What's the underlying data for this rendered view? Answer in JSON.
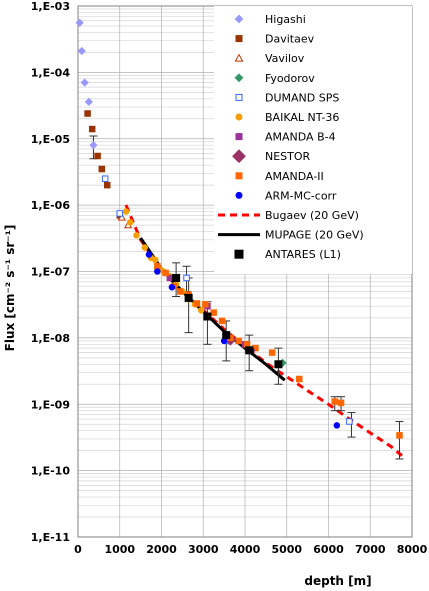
{
  "chart_data": {
    "type": "scatter",
    "xlabel": "depth [m]",
    "ylabel": "Flux [cm⁻² s⁻¹ sr⁻¹]",
    "xlim": [
      0,
      8000
    ],
    "ylim": [
      1e-11,
      0.001
    ],
    "yscale": "log",
    "grid": true,
    "legend_position": "top-right",
    "x_ticks": [
      "0",
      "1000",
      "2000",
      "3000",
      "4000",
      "5000",
      "6000",
      "7000",
      "8000"
    ],
    "y_ticks": [
      "1,E-11",
      "1,E-10",
      "1,E-09",
      "1,E-08",
      "1,E-07",
      "1,E-06",
      "1,E-05",
      "1,E-04",
      "1,E-03"
    ],
    "series": [
      {
        "name": "Higashi",
        "marker": "diamond",
        "color": "#9999ff",
        "points": [
          [
            40,
            0.00056
          ],
          [
            90,
            0.00021
          ],
          [
            160,
            7e-05
          ],
          [
            260,
            3.6e-05
          ],
          [
            370,
            8e-06
          ]
        ]
      },
      {
        "name": "Davitaev",
        "marker": "square",
        "color": "#993300",
        "points": [
          [
            230,
            2.4e-05
          ],
          [
            340,
            1.4e-05
          ],
          [
            470,
            5.5e-06
          ],
          [
            570,
            3.5e-06
          ],
          [
            700,
            2e-06
          ],
          [
            1000,
            7e-07
          ]
        ]
      },
      {
        "name": "Vavilov",
        "marker": "triangle",
        "color": "#cc3300",
        "hollow": true,
        "points": [
          [
            1050,
            6.5e-07
          ],
          [
            1200,
            5e-07
          ]
        ]
      },
      {
        "name": "Fyodorov",
        "marker": "diamond",
        "color": "#339966",
        "points": [
          [
            4900,
            4.2e-09
          ]
        ]
      },
      {
        "name": "DUMAND SPS",
        "marker": "square",
        "color": "#3366ff",
        "hollow": true,
        "points": [
          [
            650,
            2.5e-06
          ],
          [
            1000,
            7.5e-07
          ],
          [
            2600,
            8e-08
          ],
          [
            3600,
            9e-09
          ],
          [
            6500,
            5.5e-10
          ]
        ]
      },
      {
        "name": "BAIKAL NT-36",
        "marker": "circle",
        "color": "#f5a000",
        "points": [
          [
            1150,
            8e-07
          ],
          [
            1250,
            5.5e-07
          ],
          [
            1400,
            3.5e-07
          ],
          [
            1600,
            2.3e-07
          ],
          [
            1750,
            1.6e-07
          ],
          [
            1850,
            1.5e-07
          ],
          [
            1950,
            1.1e-07
          ],
          [
            2050,
            1e-07
          ],
          [
            2200,
            8.5e-08
          ],
          [
            2350,
            6.5e-08
          ],
          [
            2500,
            5e-08
          ],
          [
            2650,
            3.8e-08
          ],
          [
            2800,
            3.2e-08
          ],
          [
            2950,
            2.6e-08
          ]
        ]
      },
      {
        "name": "AMANDA B-4",
        "marker": "square",
        "color": "#993399",
        "points": [
          [
            2200,
            8e-08
          ],
          [
            3100,
            3e-08
          ],
          [
            4000,
            8e-09
          ]
        ]
      },
      {
        "name": "NESTOR",
        "marker": "diamond",
        "color": "#993366",
        "points": [
          [
            3650,
            9.5e-09
          ]
        ]
      },
      {
        "name": "AMANDA-II",
        "marker": "square",
        "color": "#ff6600",
        "points": [
          [
            1900,
            1.2e-07
          ],
          [
            2100,
            9.5e-08
          ],
          [
            2300,
            6e-08
          ],
          [
            2450,
            5e-08
          ],
          [
            2650,
            4.5e-08
          ],
          [
            2850,
            3.3e-08
          ],
          [
            3050,
            3.2e-08
          ],
          [
            3250,
            2.4e-08
          ],
          [
            3450,
            1.8e-08
          ],
          [
            3650,
            1e-08
          ],
          [
            3850,
            9e-09
          ],
          [
            4050,
            8e-09
          ],
          [
            4250,
            7e-09
          ],
          [
            4650,
            6e-09
          ],
          [
            5300,
            2.4e-09
          ],
          [
            6150,
            1.1e-09
          ],
          [
            6300,
            1.05e-09
          ],
          [
            7700,
            3.4e-10
          ]
        ]
      },
      {
        "name": "ARM-MC-corr",
        "marker": "circle",
        "color": "#0000ff",
        "points": [
          [
            1700,
            1.8e-07
          ],
          [
            1900,
            1e-07
          ],
          [
            2250,
            5.8e-08
          ],
          [
            3500,
            9e-09
          ],
          [
            4150,
            6.5e-09
          ],
          [
            6200,
            4.8e-10
          ]
        ]
      },
      {
        "name": "ANTARES (L1)",
        "marker": "square",
        "color": "#000000",
        "points": [
          [
            2350,
            8e-08
          ],
          [
            2650,
            4e-08
          ],
          [
            3100,
            2.1e-08
          ],
          [
            3550,
            1.1e-08
          ],
          [
            4100,
            6.5e-09
          ],
          [
            4800,
            4e-09
          ]
        ],
        "errors_low": [
          4.2e-08,
          1.2e-08,
          8e-09,
          4.5e-09,
          3.2e-09,
          2e-09
        ],
        "errors_high": [
          1.35e-07,
          8e-08,
          3.5e-08,
          1.8e-08,
          1.1e-08,
          7e-09
        ]
      }
    ],
    "extra_error_bars": [
      {
        "x": 370,
        "low": 5e-06,
        "high": 1.1e-05
      },
      {
        "x": 2600,
        "low": 5e-08,
        "high": 1.2e-07
      },
      {
        "x": 6150,
        "low": 8e-10,
        "high": 1.3e-09
      },
      {
        "x": 6300,
        "low": 8e-10,
        "high": 1.3e-09
      },
      {
        "x": 6550,
        "low": 3.2e-10,
        "high": 7.5e-10
      },
      {
        "x": 7700,
        "low": 1.5e-10,
        "high": 5.5e-10
      }
    ],
    "lines": [
      {
        "name": "Bugaev (20 GeV)",
        "style": "dashed",
        "color": "#ff0000",
        "points": [
          [
            1150,
            1e-06
          ],
          [
            1500,
            3e-07
          ],
          [
            2000,
            1.05e-07
          ],
          [
            2500,
            5e-08
          ],
          [
            3000,
            2.6e-08
          ],
          [
            3500,
            1.35e-08
          ],
          [
            4000,
            7.5e-09
          ],
          [
            4500,
            4.2e-09
          ],
          [
            5000,
            2.6e-09
          ],
          [
            5500,
            1.6e-09
          ],
          [
            6000,
            1e-09
          ],
          [
            6500,
            6e-10
          ],
          [
            7000,
            3.7e-10
          ],
          [
            7500,
            2.3e-10
          ],
          [
            7800,
            1.6e-10
          ]
        ]
      },
      {
        "name": "MUPAGE  (20 GeV)",
        "style": "solid",
        "color": "#000000",
        "points": [
          [
            1500,
            3.2e-07
          ],
          [
            2000,
            1.1e-07
          ],
          [
            2500,
            5e-08
          ],
          [
            3000,
            2.5e-08
          ],
          [
            3500,
            1.25e-08
          ],
          [
            4000,
            7e-09
          ],
          [
            4500,
            4e-09
          ],
          [
            4950,
            2.3e-09
          ]
        ]
      }
    ]
  }
}
